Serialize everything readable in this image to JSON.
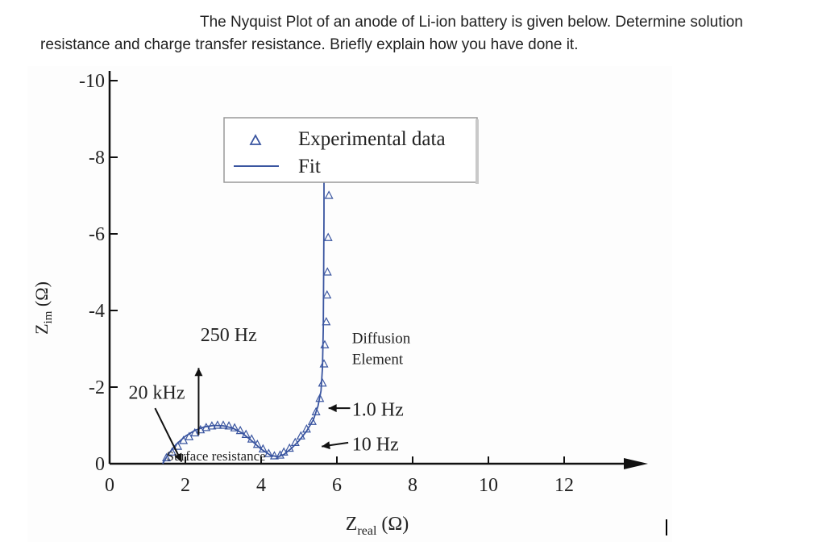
{
  "question": {
    "line1": "The Nyquist Plot of an anode of Li-ion battery is given below. Determine solution",
    "line2": "resistance and charge transfer resistance. Briefly explain how you have done it."
  },
  "chart_data": {
    "type": "scatter",
    "title": "",
    "xlabel": "Zreal (Ω)",
    "ylabel": "Zim (Ω)",
    "xlim": [
      0,
      13.5
    ],
    "ylim": [
      0,
      -10
    ],
    "x_ticks": [
      "0",
      "2",
      "4",
      "6",
      "8",
      "10",
      "12"
    ],
    "x_tick_values": [
      0,
      2,
      4,
      6,
      8,
      10,
      12
    ],
    "y_ticks": [
      "0",
      "-2",
      "-4",
      "-6",
      "-8",
      "-10"
    ],
    "y_tick_values": [
      0,
      -2,
      -4,
      -6,
      -8,
      -10
    ],
    "grid": false,
    "legend_position": "top-right",
    "series": [
      {
        "name": "Experimental data",
        "marker": "triangle",
        "color": "#3a55a0",
        "x": [
          1.5,
          1.65,
          1.8,
          1.95,
          2.1,
          2.25,
          2.4,
          2.55,
          2.7,
          2.85,
          3.0,
          3.15,
          3.3,
          3.45,
          3.6,
          3.75,
          3.9,
          4.05,
          4.2,
          4.35,
          4.5,
          4.6,
          4.75,
          4.9,
          5.05,
          5.2,
          5.35,
          5.45,
          5.55,
          5.62,
          5.66,
          5.68,
          5.72,
          5.74,
          5.75,
          5.77,
          5.79
        ],
        "y": [
          -0.15,
          -0.3,
          -0.45,
          -0.6,
          -0.7,
          -0.8,
          -0.88,
          -0.94,
          -0.98,
          -1.0,
          -1.0,
          -0.98,
          -0.93,
          -0.86,
          -0.76,
          -0.64,
          -0.5,
          -0.38,
          -0.26,
          -0.2,
          -0.22,
          -0.3,
          -0.4,
          -0.55,
          -0.72,
          -0.9,
          -1.1,
          -1.35,
          -1.7,
          -2.1,
          -2.6,
          -3.1,
          -3.7,
          -4.4,
          -5.0,
          -5.9,
          -7.0
        ]
      },
      {
        "name": "Fit",
        "style": "line",
        "color": "#3a55a0",
        "x": [
          1.4,
          1.55,
          1.75,
          2.0,
          2.25,
          2.5,
          2.75,
          3.0,
          3.25,
          3.5,
          3.75,
          4.0,
          4.25,
          4.45,
          4.6,
          4.8,
          5.0,
          5.2,
          5.38,
          5.5,
          5.58,
          5.62,
          5.64,
          5.65,
          5.66,
          5.66
        ],
        "y": [
          0.0,
          -0.25,
          -0.5,
          -0.72,
          -0.87,
          -0.96,
          -1.0,
          -0.99,
          -0.93,
          -0.8,
          -0.6,
          -0.38,
          -0.22,
          -0.18,
          -0.24,
          -0.4,
          -0.6,
          -0.85,
          -1.15,
          -1.5,
          -1.9,
          -2.5,
          -3.5,
          -5.0,
          -6.5,
          -7.8
        ]
      }
    ],
    "annotations": [
      {
        "text": "20 kHz",
        "x": 0.5,
        "y": -1.7
      },
      {
        "text": "250 Hz",
        "x": 2.4,
        "y": -3.2
      },
      {
        "text": "Surface resistance",
        "x": 1.5,
        "y": -0.08
      },
      {
        "text": "Diffusion",
        "x": 6.4,
        "y": -3.15
      },
      {
        "text": "Element",
        "x": 6.4,
        "y": -2.6
      },
      {
        "text": "1.0 Hz",
        "x": 6.4,
        "y": -1.25
      },
      {
        "text": "10 Hz",
        "x": 6.4,
        "y": -0.35
      }
    ]
  }
}
